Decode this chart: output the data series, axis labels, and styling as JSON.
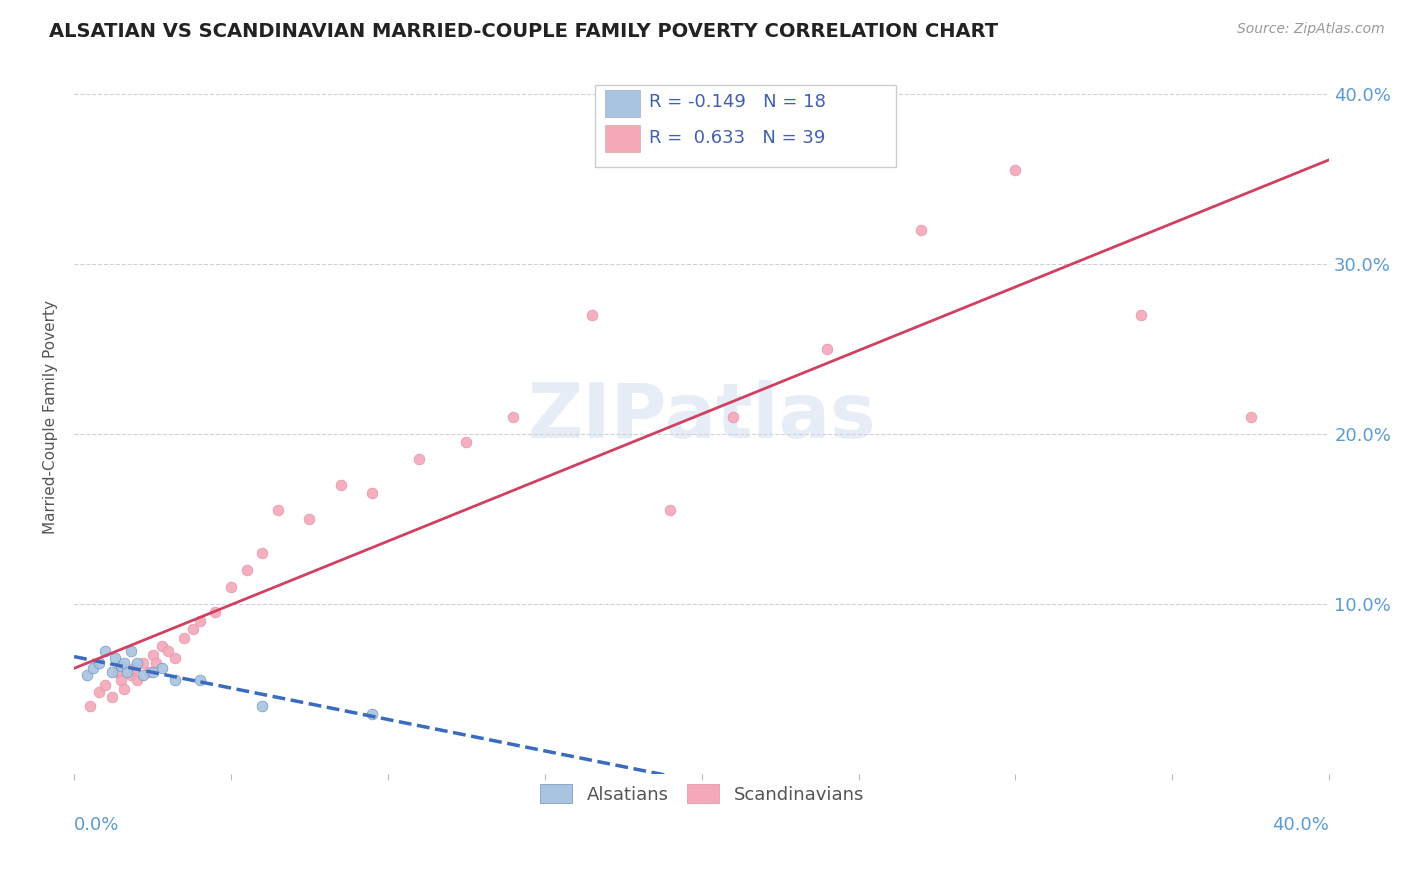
{
  "title": "ALSATIAN VS SCANDINAVIAN MARRIED-COUPLE FAMILY POVERTY CORRELATION CHART",
  "source": "Source: ZipAtlas.com",
  "ylabel": "Married-Couple Family Poverty",
  "xlim": [
    0.0,
    0.4
  ],
  "ylim": [
    0.0,
    0.42
  ],
  "yticks": [
    0.0,
    0.1,
    0.2,
    0.3,
    0.4
  ],
  "ytick_labels": [
    "",
    "10.0%",
    "20.0%",
    "30.0%",
    "40.0%"
  ],
  "alsatian_R": -0.149,
  "alsatian_N": 18,
  "scandinavian_R": 0.633,
  "scandinavian_N": 39,
  "alsatian_color": "#a8c4e0",
  "scandinavian_color": "#f4a8b8",
  "alsatian_line_color": "#3a6bbf",
  "scandinavian_line_color": "#d04060",
  "alsatian_x": [
    0.004,
    0.006,
    0.008,
    0.01,
    0.012,
    0.013,
    0.015,
    0.016,
    0.017,
    0.018,
    0.02,
    0.022,
    0.025,
    0.028,
    0.032,
    0.04,
    0.06,
    0.095
  ],
  "alsatian_y": [
    0.058,
    0.062,
    0.065,
    0.072,
    0.06,
    0.068,
    0.063,
    0.065,
    0.06,
    0.072,
    0.065,
    0.058,
    0.06,
    0.062,
    0.055,
    0.055,
    0.04,
    0.035
  ],
  "scandinavian_x": [
    0.005,
    0.008,
    0.01,
    0.012,
    0.014,
    0.015,
    0.016,
    0.018,
    0.019,
    0.02,
    0.022,
    0.024,
    0.025,
    0.026,
    0.028,
    0.03,
    0.032,
    0.035,
    0.038,
    0.04,
    0.045,
    0.05,
    0.055,
    0.06,
    0.065,
    0.075,
    0.085,
    0.095,
    0.11,
    0.125,
    0.14,
    0.165,
    0.19,
    0.21,
    0.24,
    0.27,
    0.3,
    0.34,
    0.375
  ],
  "scandinavian_y": [
    0.04,
    0.048,
    0.052,
    0.045,
    0.06,
    0.055,
    0.05,
    0.058,
    0.062,
    0.055,
    0.065,
    0.06,
    0.07,
    0.065,
    0.075,
    0.072,
    0.068,
    0.08,
    0.085,
    0.09,
    0.095,
    0.11,
    0.12,
    0.13,
    0.155,
    0.15,
    0.17,
    0.165,
    0.185,
    0.195,
    0.21,
    0.27,
    0.155,
    0.21,
    0.25,
    0.32,
    0.355,
    0.27,
    0.21
  ]
}
